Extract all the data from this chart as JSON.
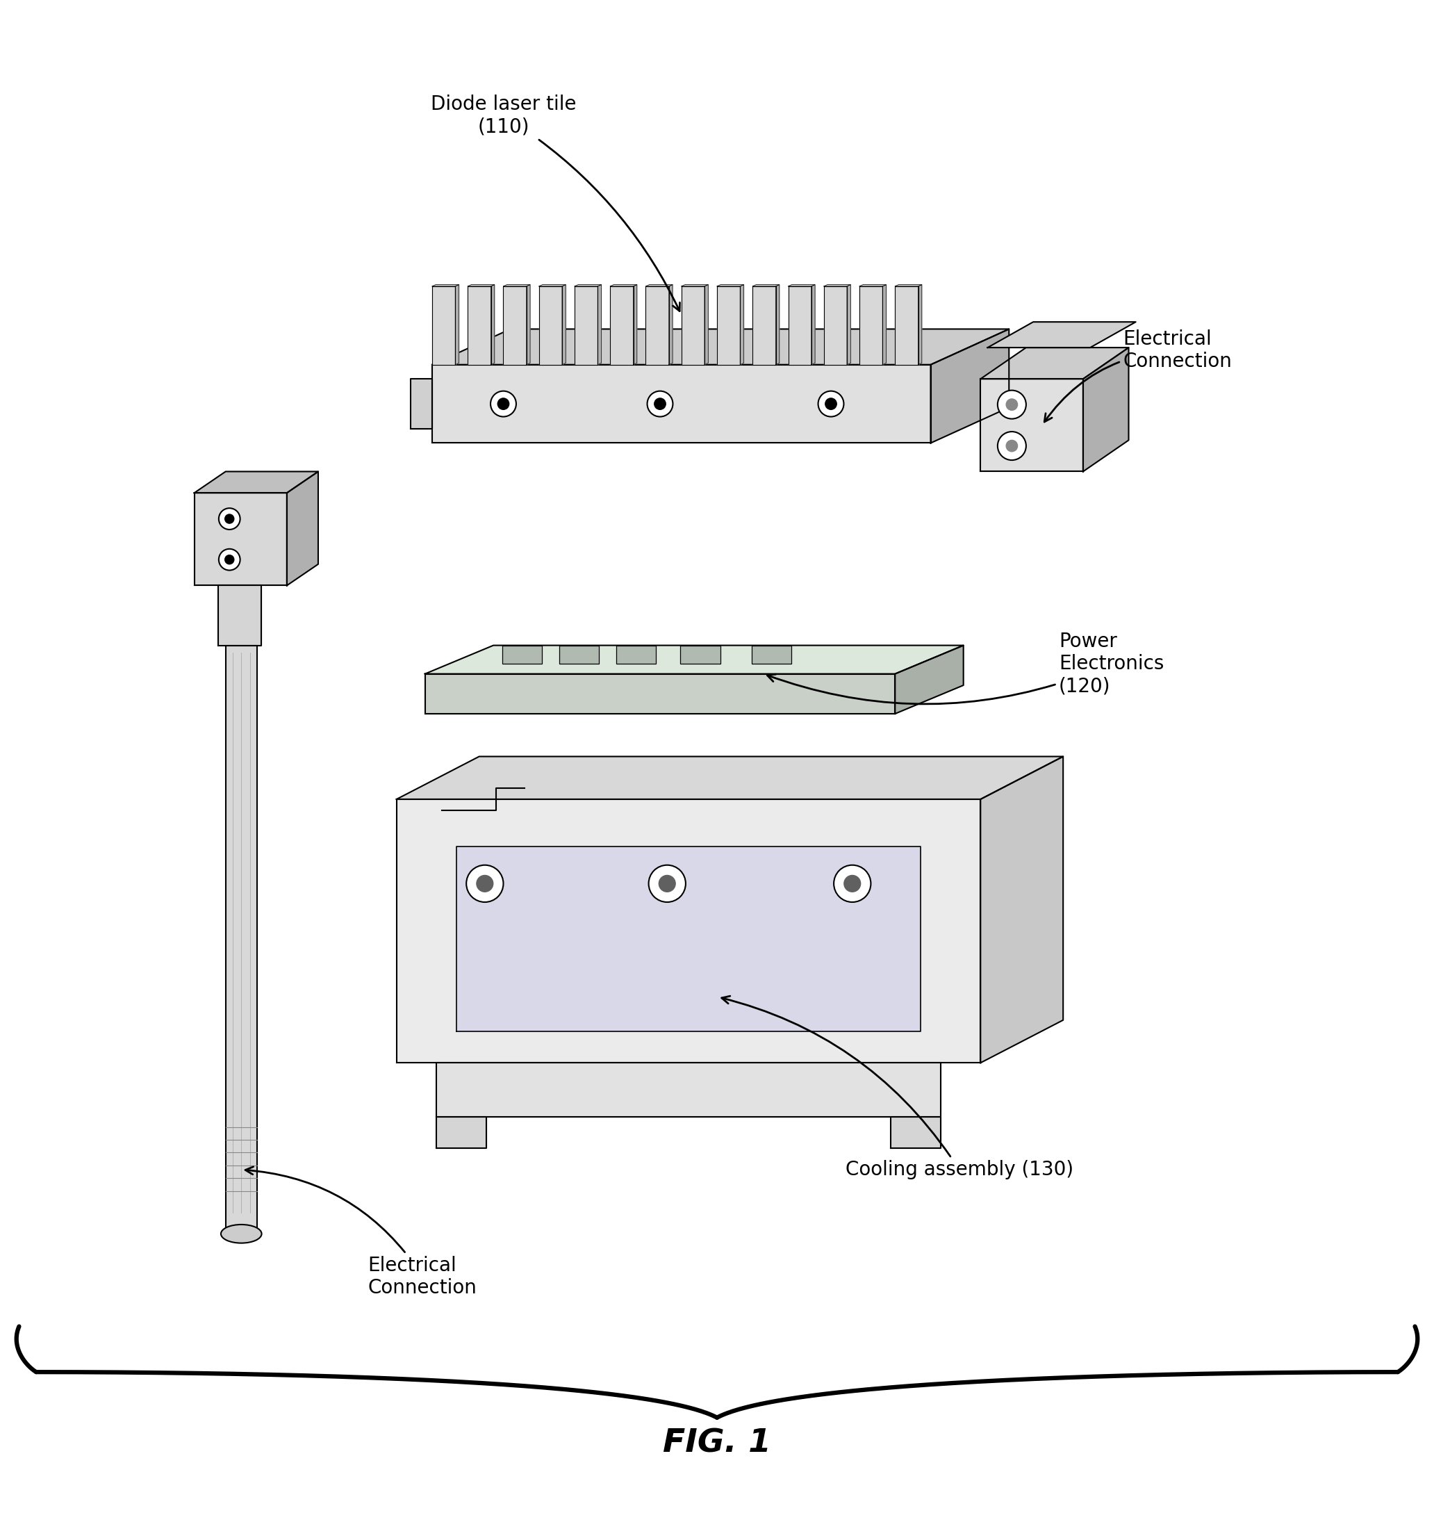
{
  "title": "FIG. 1",
  "bg_color": "#ffffff",
  "line_color": "#000000",
  "labels": {
    "diode_laser_tile": "Diode laser tile\n(110)",
    "electrical_connection_top": "Electrical\nConnection",
    "power_electronics": "Power\nElectronics\n(120)",
    "cooling_assembly": "Cooling assembly (130)",
    "electrical_connection_bottom": "Electrical\nConnection"
  },
  "fig_label": "FIG. 1",
  "fig_width": 20.64,
  "fig_height": 21.77
}
